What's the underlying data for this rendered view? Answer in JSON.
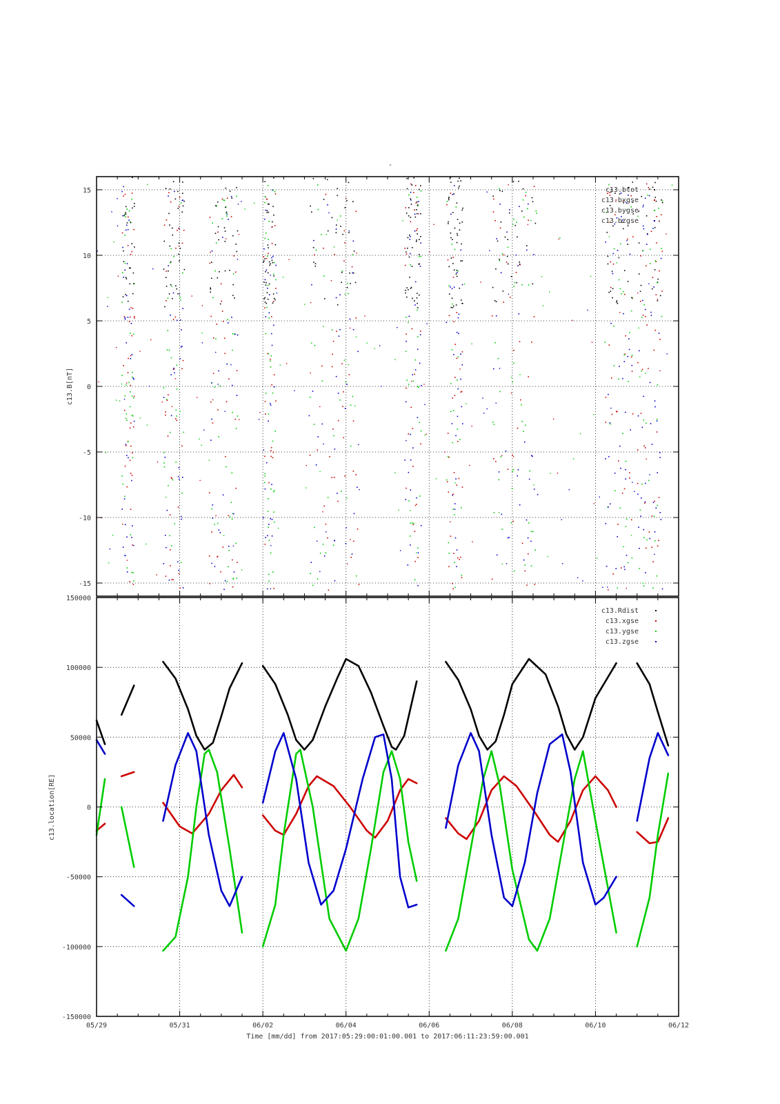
{
  "figure": {
    "title": "-",
    "xlabel": "Time [mm/dd]  from 2017:05:29:00:01:00.001  to  2017:06:11:23:59:00.001",
    "x_ticks": [
      "05/29",
      "05/31",
      "06/02",
      "06/04",
      "06/06",
      "06/08",
      "06/10",
      "06/12"
    ],
    "x_range_days": [
      0,
      14
    ]
  },
  "colors": {
    "black": "#000000",
    "red": "#cc0000",
    "green": "#00cc00",
    "blue": "#0000cc",
    "grid": "#000000"
  },
  "chart_data": [
    {
      "type": "scatter",
      "ylabel": "c13.B[nT]",
      "ylim": [
        -16,
        16
      ],
      "y_ticks": [
        "15",
        "10",
        "5",
        "0",
        "-5",
        "-10",
        "-15"
      ],
      "grid": true,
      "legend_position": "top-right",
      "legend": [
        "c13.btot",
        "c13.bxgse",
        "c13.bygse",
        "c13.bzgse"
      ],
      "series": [
        {
          "name": "c13.btot",
          "color": "black"
        },
        {
          "name": "c13.bxgse",
          "color": "red"
        },
        {
          "name": "c13.bygse",
          "color": "green"
        },
        {
          "name": "c13.bzgse",
          "color": "blue"
        }
      ],
      "activity_intervals_days": [
        [
          0.6,
          0.9
        ],
        [
          1.6,
          2.1
        ],
        [
          2.7,
          3.4
        ],
        [
          4.0,
          4.3
        ],
        [
          5.1,
          6.3
        ],
        [
          7.4,
          7.8
        ],
        [
          8.4,
          8.8
        ],
        [
          9.5,
          10.6
        ],
        [
          12.2,
          12.9
        ],
        [
          13.0,
          13.6
        ]
      ]
    },
    {
      "type": "line",
      "ylabel": "c13.location[RE]",
      "ylim": [
        -150000,
        150000
      ],
      "y_ticks": [
        "150000",
        "100000",
        "50000",
        "0",
        "-50000",
        "-100000",
        "-150000"
      ],
      "grid": true,
      "legend_position": "top-right",
      "legend": [
        "c13.Rdist",
        "c13.xgse",
        "c13.ygse",
        "c13.zgse"
      ],
      "segments_days": [
        [
          0.0,
          0.2
        ],
        [
          0.6,
          0.9
        ],
        [
          1.6,
          3.5
        ],
        [
          4.0,
          7.7
        ],
        [
          8.4,
          12.5
        ],
        [
          13.0,
          13.75
        ]
      ],
      "series": [
        {
          "name": "c13.Rdist",
          "color": "black",
          "points": [
            [
              0.0,
              62000
            ],
            [
              0.2,
              45000
            ],
            [
              0.6,
              66000
            ],
            [
              0.9,
              87000
            ],
            [
              1.6,
              104000
            ],
            [
              1.9,
              92000
            ],
            [
              2.2,
              70000
            ],
            [
              2.4,
              51000
            ],
            [
              2.6,
              41000
            ],
            [
              2.8,
              46000
            ],
            [
              3.0,
              65000
            ],
            [
              3.2,
              85000
            ],
            [
              3.5,
              103000
            ],
            [
              4.0,
              101000
            ],
            [
              4.3,
              88000
            ],
            [
              4.6,
              66000
            ],
            [
              4.8,
              48000
            ],
            [
              5.0,
              41000
            ],
            [
              5.2,
              48000
            ],
            [
              5.5,
              72000
            ],
            [
              5.8,
              93000
            ],
            [
              6.0,
              106000
            ],
            [
              6.3,
              101000
            ],
            [
              6.6,
              82000
            ],
            [
              6.9,
              58000
            ],
            [
              7.1,
              43000
            ],
            [
              7.2,
              41000
            ],
            [
              7.4,
              51000
            ],
            [
              7.7,
              90000
            ],
            [
              8.4,
              104000
            ],
            [
              8.7,
              91000
            ],
            [
              9.0,
              70000
            ],
            [
              9.2,
              51000
            ],
            [
              9.4,
              41000
            ],
            [
              9.6,
              47000
            ],
            [
              9.8,
              66000
            ],
            [
              10.0,
              88000
            ],
            [
              10.4,
              106000
            ],
            [
              10.8,
              95000
            ],
            [
              11.1,
              72000
            ],
            [
              11.3,
              52000
            ],
            [
              11.5,
              41000
            ],
            [
              11.7,
              50000
            ],
            [
              12.0,
              78000
            ],
            [
              12.5,
              103000
            ],
            [
              13.0,
              103000
            ],
            [
              13.3,
              88000
            ],
            [
              13.5,
              68000
            ],
            [
              13.75,
              44000
            ]
          ]
        },
        {
          "name": "c13.xgse",
          "color": "red",
          "points": [
            [
              0.0,
              -17000
            ],
            [
              0.2,
              -12000
            ],
            [
              0.6,
              22000
            ],
            [
              0.9,
              25000
            ],
            [
              1.6,
              3000
            ],
            [
              2.0,
              -14000
            ],
            [
              2.3,
              -19000
            ],
            [
              2.7,
              -5000
            ],
            [
              3.0,
              12000
            ],
            [
              3.3,
              23000
            ],
            [
              3.5,
              14000
            ],
            [
              4.0,
              -6000
            ],
            [
              4.3,
              -17000
            ],
            [
              4.5,
              -20000
            ],
            [
              4.8,
              -5000
            ],
            [
              5.1,
              15000
            ],
            [
              5.3,
              22000
            ],
            [
              5.7,
              15000
            ],
            [
              6.1,
              0
            ],
            [
              6.5,
              -17000
            ],
            [
              6.7,
              -22000
            ],
            [
              7.0,
              -10000
            ],
            [
              7.3,
              12000
            ],
            [
              7.5,
              20000
            ],
            [
              7.7,
              17000
            ],
            [
              8.4,
              -8000
            ],
            [
              8.7,
              -19000
            ],
            [
              8.9,
              -23000
            ],
            [
              9.2,
              -10000
            ],
            [
              9.5,
              12000
            ],
            [
              9.8,
              22000
            ],
            [
              10.1,
              15000
            ],
            [
              10.5,
              -2000
            ],
            [
              10.9,
              -20000
            ],
            [
              11.1,
              -25000
            ],
            [
              11.4,
              -10000
            ],
            [
              11.7,
              12000
            ],
            [
              12.0,
              22000
            ],
            [
              12.3,
              12000
            ],
            [
              12.5,
              0
            ],
            [
              13.0,
              -18000
            ],
            [
              13.3,
              -26000
            ],
            [
              13.5,
              -25000
            ],
            [
              13.75,
              -8000
            ]
          ]
        },
        {
          "name": "c13.ygse",
          "color": "green",
          "points": [
            [
              0.0,
              -20000
            ],
            [
              0.2,
              20000
            ],
            [
              0.6,
              0
            ],
            [
              0.9,
              -43000
            ],
            [
              1.6,
              -103000
            ],
            [
              1.9,
              -93000
            ],
            [
              2.2,
              -50000
            ],
            [
              2.4,
              0
            ],
            [
              2.6,
              38000
            ],
            [
              2.7,
              41000
            ],
            [
              2.9,
              25000
            ],
            [
              3.2,
              -30000
            ],
            [
              3.5,
              -90000
            ],
            [
              4.0,
              -100000
            ],
            [
              4.3,
              -70000
            ],
            [
              4.5,
              -20000
            ],
            [
              4.8,
              38000
            ],
            [
              4.9,
              41000
            ],
            [
              5.2,
              0
            ],
            [
              5.6,
              -80000
            ],
            [
              6.0,
              -103000
            ],
            [
              6.3,
              -80000
            ],
            [
              6.6,
              -30000
            ],
            [
              6.9,
              25000
            ],
            [
              7.1,
              40000
            ],
            [
              7.3,
              20000
            ],
            [
              7.5,
              -25000
            ],
            [
              7.7,
              -53000
            ],
            [
              8.4,
              -103000
            ],
            [
              8.7,
              -80000
            ],
            [
              9.0,
              -30000
            ],
            [
              9.3,
              20000
            ],
            [
              9.5,
              40000
            ],
            [
              9.7,
              15000
            ],
            [
              10.0,
              -45000
            ],
            [
              10.4,
              -95000
            ],
            [
              10.6,
              -103000
            ],
            [
              10.9,
              -80000
            ],
            [
              11.2,
              -30000
            ],
            [
              11.5,
              20000
            ],
            [
              11.7,
              40000
            ],
            [
              12.0,
              -10000
            ],
            [
              12.5,
              -90000
            ],
            [
              13.0,
              -100000
            ],
            [
              13.3,
              -65000
            ],
            [
              13.5,
              -20000
            ],
            [
              13.75,
              24000
            ]
          ]
        },
        {
          "name": "c13.zgse",
          "color": "blue",
          "points": [
            [
              0.0,
              48000
            ],
            [
              0.2,
              38000
            ],
            [
              0.6,
              -63000
            ],
            [
              0.9,
              -71000
            ],
            [
              1.6,
              -10000
            ],
            [
              1.9,
              30000
            ],
            [
              2.2,
              53000
            ],
            [
              2.4,
              40000
            ],
            [
              2.7,
              -20000
            ],
            [
              3.0,
              -60000
            ],
            [
              3.2,
              -71000
            ],
            [
              3.5,
              -50000
            ],
            [
              4.0,
              3000
            ],
            [
              4.3,
              40000
            ],
            [
              4.5,
              53000
            ],
            [
              4.8,
              20000
            ],
            [
              5.1,
              -40000
            ],
            [
              5.4,
              -70000
            ],
            [
              5.7,
              -60000
            ],
            [
              6.0,
              -30000
            ],
            [
              6.4,
              20000
            ],
            [
              6.7,
              50000
            ],
            [
              6.9,
              52000
            ],
            [
              7.1,
              20000
            ],
            [
              7.3,
              -50000
            ],
            [
              7.5,
              -72000
            ],
            [
              7.7,
              -70000
            ],
            [
              8.4,
              -15000
            ],
            [
              8.7,
              30000
            ],
            [
              9.0,
              53000
            ],
            [
              9.2,
              40000
            ],
            [
              9.5,
              -20000
            ],
            [
              9.8,
              -65000
            ],
            [
              10.0,
              -71000
            ],
            [
              10.3,
              -40000
            ],
            [
              10.6,
              10000
            ],
            [
              10.9,
              45000
            ],
            [
              11.2,
              52000
            ],
            [
              11.4,
              25000
            ],
            [
              11.7,
              -40000
            ],
            [
              12.0,
              -70000
            ],
            [
              12.2,
              -65000
            ],
            [
              12.5,
              -50000
            ],
            [
              13.0,
              -10000
            ],
            [
              13.3,
              35000
            ],
            [
              13.5,
              53000
            ],
            [
              13.75,
              37000
            ]
          ]
        }
      ]
    }
  ]
}
